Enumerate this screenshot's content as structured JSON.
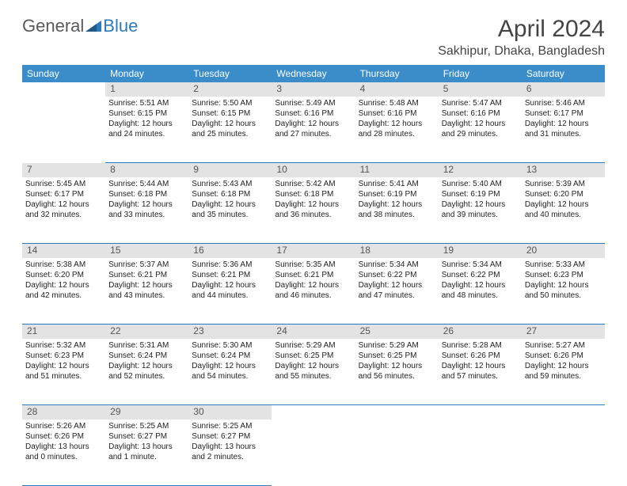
{
  "logo": {
    "part1": "General",
    "part2": "Blue"
  },
  "title": "April 2024",
  "location": "Sakhipur, Dhaka, Bangladesh",
  "colors": {
    "header_bg": "#3a8dc9",
    "header_fg": "#ffffff",
    "daynum_bg": "#e3e3e3",
    "border": "#2e7ab8",
    "logo_gray": "#5a5a5a",
    "logo_blue": "#2e7ab8"
  },
  "days_of_week": [
    "Sunday",
    "Monday",
    "Tuesday",
    "Wednesday",
    "Thursday",
    "Friday",
    "Saturday"
  ],
  "weeks": [
    {
      "nums": [
        "",
        "1",
        "2",
        "3",
        "4",
        "5",
        "6"
      ],
      "cells": [
        null,
        {
          "sunrise": "Sunrise: 5:51 AM",
          "sunset": "Sunset: 6:15 PM",
          "day1": "Daylight: 12 hours",
          "day2": "and 24 minutes."
        },
        {
          "sunrise": "Sunrise: 5:50 AM",
          "sunset": "Sunset: 6:15 PM",
          "day1": "Daylight: 12 hours",
          "day2": "and 25 minutes."
        },
        {
          "sunrise": "Sunrise: 5:49 AM",
          "sunset": "Sunset: 6:16 PM",
          "day1": "Daylight: 12 hours",
          "day2": "and 27 minutes."
        },
        {
          "sunrise": "Sunrise: 5:48 AM",
          "sunset": "Sunset: 6:16 PM",
          "day1": "Daylight: 12 hours",
          "day2": "and 28 minutes."
        },
        {
          "sunrise": "Sunrise: 5:47 AM",
          "sunset": "Sunset: 6:16 PM",
          "day1": "Daylight: 12 hours",
          "day2": "and 29 minutes."
        },
        {
          "sunrise": "Sunrise: 5:46 AM",
          "sunset": "Sunset: 6:17 PM",
          "day1": "Daylight: 12 hours",
          "day2": "and 31 minutes."
        }
      ]
    },
    {
      "nums": [
        "7",
        "8",
        "9",
        "10",
        "11",
        "12",
        "13"
      ],
      "cells": [
        {
          "sunrise": "Sunrise: 5:45 AM",
          "sunset": "Sunset: 6:17 PM",
          "day1": "Daylight: 12 hours",
          "day2": "and 32 minutes."
        },
        {
          "sunrise": "Sunrise: 5:44 AM",
          "sunset": "Sunset: 6:18 PM",
          "day1": "Daylight: 12 hours",
          "day2": "and 33 minutes."
        },
        {
          "sunrise": "Sunrise: 5:43 AM",
          "sunset": "Sunset: 6:18 PM",
          "day1": "Daylight: 12 hours",
          "day2": "and 35 minutes."
        },
        {
          "sunrise": "Sunrise: 5:42 AM",
          "sunset": "Sunset: 6:18 PM",
          "day1": "Daylight: 12 hours",
          "day2": "and 36 minutes."
        },
        {
          "sunrise": "Sunrise: 5:41 AM",
          "sunset": "Sunset: 6:19 PM",
          "day1": "Daylight: 12 hours",
          "day2": "and 38 minutes."
        },
        {
          "sunrise": "Sunrise: 5:40 AM",
          "sunset": "Sunset: 6:19 PM",
          "day1": "Daylight: 12 hours",
          "day2": "and 39 minutes."
        },
        {
          "sunrise": "Sunrise: 5:39 AM",
          "sunset": "Sunset: 6:20 PM",
          "day1": "Daylight: 12 hours",
          "day2": "and 40 minutes."
        }
      ]
    },
    {
      "nums": [
        "14",
        "15",
        "16",
        "17",
        "18",
        "19",
        "20"
      ],
      "cells": [
        {
          "sunrise": "Sunrise: 5:38 AM",
          "sunset": "Sunset: 6:20 PM",
          "day1": "Daylight: 12 hours",
          "day2": "and 42 minutes."
        },
        {
          "sunrise": "Sunrise: 5:37 AM",
          "sunset": "Sunset: 6:21 PM",
          "day1": "Daylight: 12 hours",
          "day2": "and 43 minutes."
        },
        {
          "sunrise": "Sunrise: 5:36 AM",
          "sunset": "Sunset: 6:21 PM",
          "day1": "Daylight: 12 hours",
          "day2": "and 44 minutes."
        },
        {
          "sunrise": "Sunrise: 5:35 AM",
          "sunset": "Sunset: 6:21 PM",
          "day1": "Daylight: 12 hours",
          "day2": "and 46 minutes."
        },
        {
          "sunrise": "Sunrise: 5:34 AM",
          "sunset": "Sunset: 6:22 PM",
          "day1": "Daylight: 12 hours",
          "day2": "and 47 minutes."
        },
        {
          "sunrise": "Sunrise: 5:34 AM",
          "sunset": "Sunset: 6:22 PM",
          "day1": "Daylight: 12 hours",
          "day2": "and 48 minutes."
        },
        {
          "sunrise": "Sunrise: 5:33 AM",
          "sunset": "Sunset: 6:23 PM",
          "day1": "Daylight: 12 hours",
          "day2": "and 50 minutes."
        }
      ]
    },
    {
      "nums": [
        "21",
        "22",
        "23",
        "24",
        "25",
        "26",
        "27"
      ],
      "cells": [
        {
          "sunrise": "Sunrise: 5:32 AM",
          "sunset": "Sunset: 6:23 PM",
          "day1": "Daylight: 12 hours",
          "day2": "and 51 minutes."
        },
        {
          "sunrise": "Sunrise: 5:31 AM",
          "sunset": "Sunset: 6:24 PM",
          "day1": "Daylight: 12 hours",
          "day2": "and 52 minutes."
        },
        {
          "sunrise": "Sunrise: 5:30 AM",
          "sunset": "Sunset: 6:24 PM",
          "day1": "Daylight: 12 hours",
          "day2": "and 54 minutes."
        },
        {
          "sunrise": "Sunrise: 5:29 AM",
          "sunset": "Sunset: 6:25 PM",
          "day1": "Daylight: 12 hours",
          "day2": "and 55 minutes."
        },
        {
          "sunrise": "Sunrise: 5:29 AM",
          "sunset": "Sunset: 6:25 PM",
          "day1": "Daylight: 12 hours",
          "day2": "and 56 minutes."
        },
        {
          "sunrise": "Sunrise: 5:28 AM",
          "sunset": "Sunset: 6:26 PM",
          "day1": "Daylight: 12 hours",
          "day2": "and 57 minutes."
        },
        {
          "sunrise": "Sunrise: 5:27 AM",
          "sunset": "Sunset: 6:26 PM",
          "day1": "Daylight: 12 hours",
          "day2": "and 59 minutes."
        }
      ]
    },
    {
      "nums": [
        "28",
        "29",
        "30",
        "",
        "",
        "",
        ""
      ],
      "cells": [
        {
          "sunrise": "Sunrise: 5:26 AM",
          "sunset": "Sunset: 6:26 PM",
          "day1": "Daylight: 13 hours",
          "day2": "and 0 minutes."
        },
        {
          "sunrise": "Sunrise: 5:25 AM",
          "sunset": "Sunset: 6:27 PM",
          "day1": "Daylight: 13 hours",
          "day2": "and 1 minute."
        },
        {
          "sunrise": "Sunrise: 5:25 AM",
          "sunset": "Sunset: 6:27 PM",
          "day1": "Daylight: 13 hours",
          "day2": "and 2 minutes."
        },
        null,
        null,
        null,
        null
      ]
    }
  ]
}
